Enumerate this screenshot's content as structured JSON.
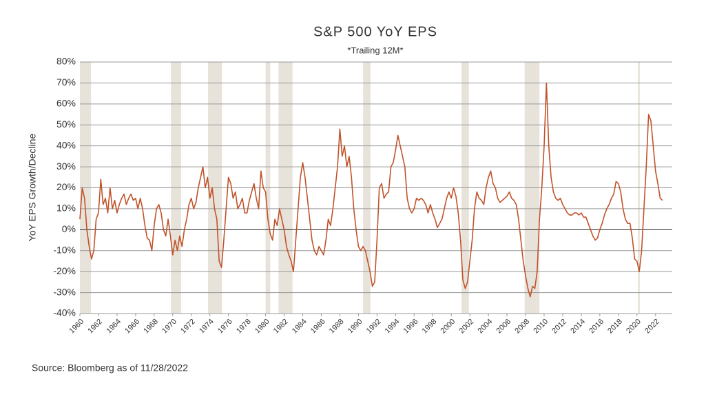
{
  "chart_data": {
    "type": "line",
    "title": "S&P 500 YoY EPS",
    "subtitle": "*Trailing 12M*",
    "y_label": "YoY EPS Growth/Decline",
    "source": "Source: Bloomberg as of 11/28/2022",
    "xlim": [
      1960,
      2023.8
    ],
    "xticks": [
      1960,
      1962,
      1964,
      1966,
      1968,
      1970,
      1972,
      1974,
      1976,
      1978,
      1980,
      1982,
      1984,
      1986,
      1988,
      1990,
      1992,
      1994,
      1996,
      1998,
      2000,
      2002,
      2004,
      2006,
      2008,
      2010,
      2012,
      2014,
      2016,
      2018,
      2020,
      2022
    ],
    "ylim": [
      -40,
      80
    ],
    "yticks": [
      {
        "value": -40,
        "label": "-40%"
      },
      {
        "value": -30,
        "label": "-30%"
      },
      {
        "value": -20,
        "label": "-20%"
      },
      {
        "value": -10,
        "label": "-10%"
      },
      {
        "value": 0,
        "label": "0%"
      },
      {
        "value": 10,
        "label": "10%"
      },
      {
        "value": 20,
        "label": "20%"
      },
      {
        "value": 30,
        "label": "30%"
      },
      {
        "value": 40,
        "label": "40%"
      },
      {
        "value": 50,
        "label": "50%"
      },
      {
        "value": 60,
        "label": "60%"
      },
      {
        "value": 70,
        "label": "70%"
      },
      {
        "value": 80,
        "label": "80%"
      }
    ],
    "grid": true,
    "recession_color": "#e8e3da",
    "recessions": [
      [
        1960.0,
        1961.2
      ],
      [
        1969.8,
        1970.9
      ],
      [
        1973.8,
        1975.3
      ],
      [
        1980.0,
        1980.5
      ],
      [
        1981.4,
        1982.9
      ],
      [
        1990.5,
        1991.3
      ],
      [
        2001.1,
        2001.9
      ],
      [
        2007.9,
        2009.5
      ],
      [
        2020.1,
        2020.3
      ]
    ],
    "x": [
      1960,
      1960.25,
      1960.5,
      1960.75,
      1961,
      1961.25,
      1961.5,
      1961.75,
      1962,
      1962.25,
      1962.5,
      1962.75,
      1963,
      1963.25,
      1963.5,
      1963.75,
      1964,
      1964.25,
      1964.5,
      1964.75,
      1965,
      1965.25,
      1965.5,
      1965.75,
      1966,
      1966.25,
      1966.5,
      1966.75,
      1967,
      1967.25,
      1967.5,
      1967.75,
      1968,
      1968.25,
      1968.5,
      1968.75,
      1969,
      1969.25,
      1969.5,
      1969.75,
      1970,
      1970.25,
      1970.5,
      1970.75,
      1971,
      1971.25,
      1971.5,
      1971.75,
      1972,
      1972.25,
      1972.5,
      1972.75,
      1973,
      1973.25,
      1973.5,
      1973.75,
      1974,
      1974.25,
      1974.5,
      1974.75,
      1975,
      1975.25,
      1975.5,
      1975.75,
      1976,
      1976.25,
      1976.5,
      1976.75,
      1977,
      1977.25,
      1977.5,
      1977.75,
      1978,
      1978.25,
      1978.5,
      1978.75,
      1979,
      1979.25,
      1979.5,
      1979.75,
      1980,
      1980.25,
      1980.5,
      1980.75,
      1981,
      1981.25,
      1981.5,
      1981.75,
      1982,
      1982.25,
      1982.5,
      1982.75,
      1983,
      1983.25,
      1983.5,
      1983.75,
      1984,
      1984.25,
      1984.5,
      1984.75,
      1985,
      1985.25,
      1985.5,
      1985.75,
      1986,
      1986.25,
      1986.5,
      1986.75,
      1987,
      1987.25,
      1987.5,
      1987.75,
      1988,
      1988.25,
      1988.5,
      1988.75,
      1989,
      1989.25,
      1989.5,
      1989.75,
      1990,
      1990.25,
      1990.5,
      1990.75,
      1991,
      1991.25,
      1991.5,
      1991.75,
      1992,
      1992.25,
      1992.5,
      1992.75,
      1993,
      1993.25,
      1993.5,
      1993.75,
      1994,
      1994.25,
      1994.5,
      1994.75,
      1995,
      1995.25,
      1995.5,
      1995.75,
      1996,
      1996.25,
      1996.5,
      1996.75,
      1997,
      1997.25,
      1997.5,
      1997.75,
      1998,
      1998.25,
      1998.5,
      1998.75,
      1999,
      1999.25,
      1999.5,
      1999.75,
      2000,
      2000.25,
      2000.5,
      2000.75,
      2001,
      2001.25,
      2001.5,
      2001.75,
      2002,
      2002.25,
      2002.5,
      2002.75,
      2003,
      2003.25,
      2003.5,
      2003.75,
      2004,
      2004.25,
      2004.5,
      2004.75,
      2005,
      2005.25,
      2005.5,
      2005.75,
      2006,
      2006.25,
      2006.5,
      2006.75,
      2007,
      2007.25,
      2007.5,
      2007.75,
      2008,
      2008.25,
      2008.5,
      2008.75,
      2009,
      2009.25,
      2009.5,
      2009.75,
      2010,
      2010.25,
      2010.5,
      2010.75,
      2011,
      2011.25,
      2011.5,
      2011.75,
      2012,
      2012.25,
      2012.5,
      2012.75,
      2013,
      2013.25,
      2013.5,
      2013.75,
      2014,
      2014.25,
      2014.5,
      2014.75,
      2015,
      2015.25,
      2015.5,
      2015.75,
      2016,
      2016.25,
      2016.5,
      2016.75,
      2017,
      2017.25,
      2017.5,
      2017.75,
      2018,
      2018.25,
      2018.5,
      2018.75,
      2019,
      2019.25,
      2019.5,
      2019.75,
      2020,
      2020.25,
      2020.5,
      2020.75,
      2021,
      2021.25,
      2021.5,
      2021.75,
      2022,
      2022.25,
      2022.5,
      2022.75
    ],
    "series": [
      {
        "name": "YoY EPS",
        "color": "#c0532a",
        "values": [
          5,
          20,
          15,
          0,
          -8,
          -14,
          -10,
          5,
          8,
          24,
          12,
          15,
          8,
          20,
          10,
          14,
          8,
          12,
          15,
          17,
          12,
          15,
          17,
          14,
          15,
          10,
          15,
          10,
          2,
          -4,
          -5,
          -10,
          2,
          10,
          12,
          8,
          0,
          -3,
          5,
          -3,
          -12,
          -5,
          -10,
          -3,
          -8,
          0,
          5,
          12,
          15,
          10,
          13,
          20,
          25,
          30,
          20,
          25,
          15,
          20,
          10,
          5,
          -15,
          -18,
          -5,
          10,
          25,
          22,
          15,
          18,
          10,
          12,
          15,
          8,
          8,
          14,
          18,
          22,
          15,
          10,
          28,
          20,
          18,
          5,
          -2,
          -5,
          5,
          2,
          10,
          5,
          0,
          -8,
          -12,
          -15,
          -20,
          -5,
          10,
          25,
          32,
          25,
          15,
          5,
          -5,
          -10,
          -12,
          -8,
          -10,
          -12,
          -5,
          5,
          2,
          10,
          20,
          30,
          48,
          35,
          40,
          30,
          35,
          25,
          10,
          0,
          -8,
          -10,
          -8,
          -10,
          -15,
          -20,
          -27,
          -25,
          -5,
          20,
          22,
          15,
          17,
          18,
          30,
          32,
          38,
          45,
          40,
          35,
          30,
          15,
          10,
          8,
          10,
          15,
          14,
          15,
          14,
          12,
          8,
          12,
          8,
          5,
          1,
          3,
          5,
          10,
          15,
          18,
          15,
          20,
          16,
          8,
          -5,
          -24,
          -28,
          -25,
          -15,
          -5,
          10,
          18,
          15,
          14,
          12,
          20,
          25,
          28,
          22,
          20,
          15,
          13,
          14,
          15,
          16,
          18,
          15,
          14,
          12,
          5,
          -5,
          -15,
          -22,
          -28,
          -32,
          -27,
          -28,
          -20,
          5,
          20,
          40,
          70,
          40,
          25,
          18,
          15,
          14,
          15,
          12,
          10,
          8,
          7,
          7,
          8,
          8,
          7,
          8,
          6,
          6,
          3,
          0,
          -3,
          -5,
          -4,
          0,
          3,
          7,
          10,
          12,
          15,
          17,
          23,
          22,
          18,
          10,
          5,
          3,
          3,
          -4,
          -14,
          -15,
          -20,
          -10,
          10,
          30,
          55,
          52,
          40,
          28,
          22,
          15,
          14
        ]
      }
    ]
  }
}
